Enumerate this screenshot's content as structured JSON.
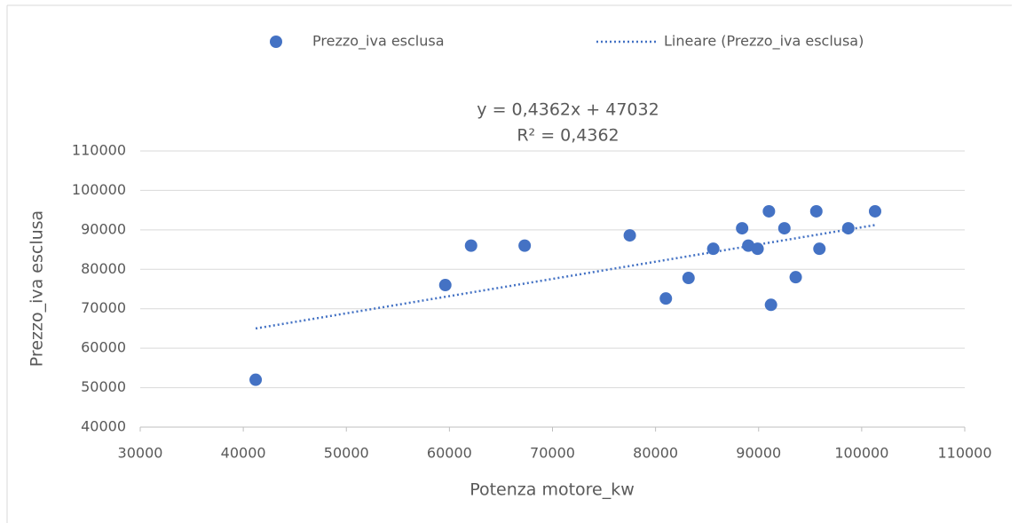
{
  "chart_data": {
    "type": "scatter",
    "xlabel": "Potenza motore_kw",
    "ylabel": "Prezzo_iva esclusa",
    "annotations": [
      "y = 0,4362x + 47032",
      "R² = 0,4362"
    ],
    "xlim": [
      30000,
      110000
    ],
    "xticks": [
      30000,
      40000,
      50000,
      60000,
      70000,
      80000,
      90000,
      100000,
      110000
    ],
    "ylim": [
      40000,
      110000
    ],
    "yticks": [
      40000,
      50000,
      60000,
      70000,
      80000,
      90000,
      100000,
      110000
    ],
    "grid": true,
    "legend": "top",
    "series": [
      {
        "name": "Prezzo_iva esclusa",
        "color": "#4472c4",
        "mode": "markers",
        "x": [
          41200,
          59600,
          62100,
          67300,
          77500,
          81000,
          83200,
          85600,
          88400,
          89000,
          89900,
          91000,
          91200,
          92500,
          93600,
          95600,
          95900,
          98700,
          101300
        ],
        "values": [
          52000,
          76000,
          86000,
          86000,
          88600,
          72600,
          77800,
          85200,
          90400,
          86000,
          85200,
          94700,
          71000,
          90400,
          78000,
          94700,
          85200,
          90400,
          94700
        ]
      },
      {
        "name": "Lineare (Prezzo_iva esclusa)",
        "color": "#4472c4",
        "mode": "dotted",
        "x": [
          41200,
          101300
        ],
        "values": [
          65003,
          91219
        ]
      }
    ]
  }
}
